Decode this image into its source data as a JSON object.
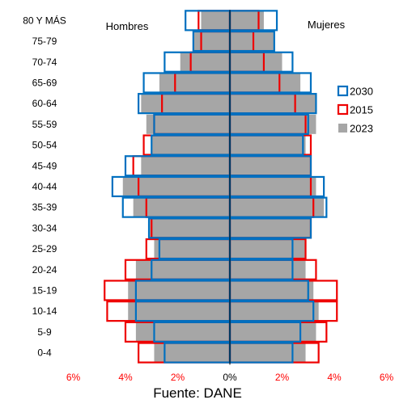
{
  "chart_data": {
    "type": "bar",
    "orientation": "horizontal-pyramid",
    "age_groups": [
      "80 Y MÁS",
      "75-79",
      "70-74",
      "65-69",
      "60-64",
      "55-59",
      "50-54",
      "45-49",
      "40-44",
      "35-39",
      "30-34",
      "25-29",
      "20-24",
      "15-19",
      "10-14",
      "5-9",
      "0-4"
    ],
    "side_labels": {
      "left": "Hombres",
      "right": "Mujeres"
    },
    "xaxis_ticks": [
      "6%",
      "4%",
      "2%",
      "0%",
      "2%",
      "4%",
      "6%"
    ],
    "xaxis_ticks_values": [
      -6,
      -4,
      -2,
      0,
      2,
      4,
      6
    ],
    "xlim": [
      -6,
      6
    ],
    "series": [
      {
        "name": "2023",
        "style": "fill",
        "color": "#a6a6a6",
        "hombres": [
          1.1,
          1.4,
          1.9,
          2.7,
          3.4,
          3.2,
          3.0,
          3.4,
          4.1,
          3.7,
          3.1,
          2.9,
          3.6,
          3.9,
          3.9,
          3.6,
          2.9
        ],
        "mujeres": [
          1.3,
          1.7,
          2.0,
          2.7,
          3.3,
          3.3,
          2.9,
          3.1,
          3.3,
          3.6,
          3.1,
          2.9,
          2.9,
          3.2,
          3.4,
          3.3,
          2.9
        ]
      },
      {
        "name": "2015",
        "style": "outline",
        "color": "#ee0000",
        "hombres": [
          1.2,
          1.1,
          1.5,
          2.1,
          2.6,
          2.9,
          3.3,
          3.7,
          3.5,
          3.2,
          3.0,
          3.2,
          4.0,
          4.8,
          4.7,
          4.0,
          3.5
        ],
        "mujeres": [
          1.1,
          0.9,
          1.3,
          1.9,
          2.5,
          2.9,
          3.1,
          3.1,
          3.1,
          3.2,
          3.1,
          2.9,
          3.3,
          4.1,
          4.1,
          3.7,
          3.4
        ]
      },
      {
        "name": "2030",
        "style": "outline",
        "color": "#0070c0",
        "hombres": [
          1.7,
          1.4,
          2.5,
          3.3,
          3.5,
          2.9,
          3.0,
          4.0,
          4.5,
          4.1,
          3.1,
          2.7,
          3.0,
          3.6,
          3.6,
          2.9,
          2.5
        ],
        "mujeres": [
          1.8,
          1.7,
          2.4,
          3.1,
          3.3,
          3.0,
          2.8,
          3.1,
          3.6,
          3.7,
          3.1,
          2.4,
          2.4,
          3.0,
          3.2,
          2.7,
          2.4
        ]
      }
    ],
    "legend": {
      "placement": "right",
      "order": [
        "2030",
        "2015",
        "2023"
      ]
    },
    "tick_colors": {
      "sides": "#ff0000",
      "center": "#000000"
    },
    "source_note": "Fuente: DANE"
  }
}
